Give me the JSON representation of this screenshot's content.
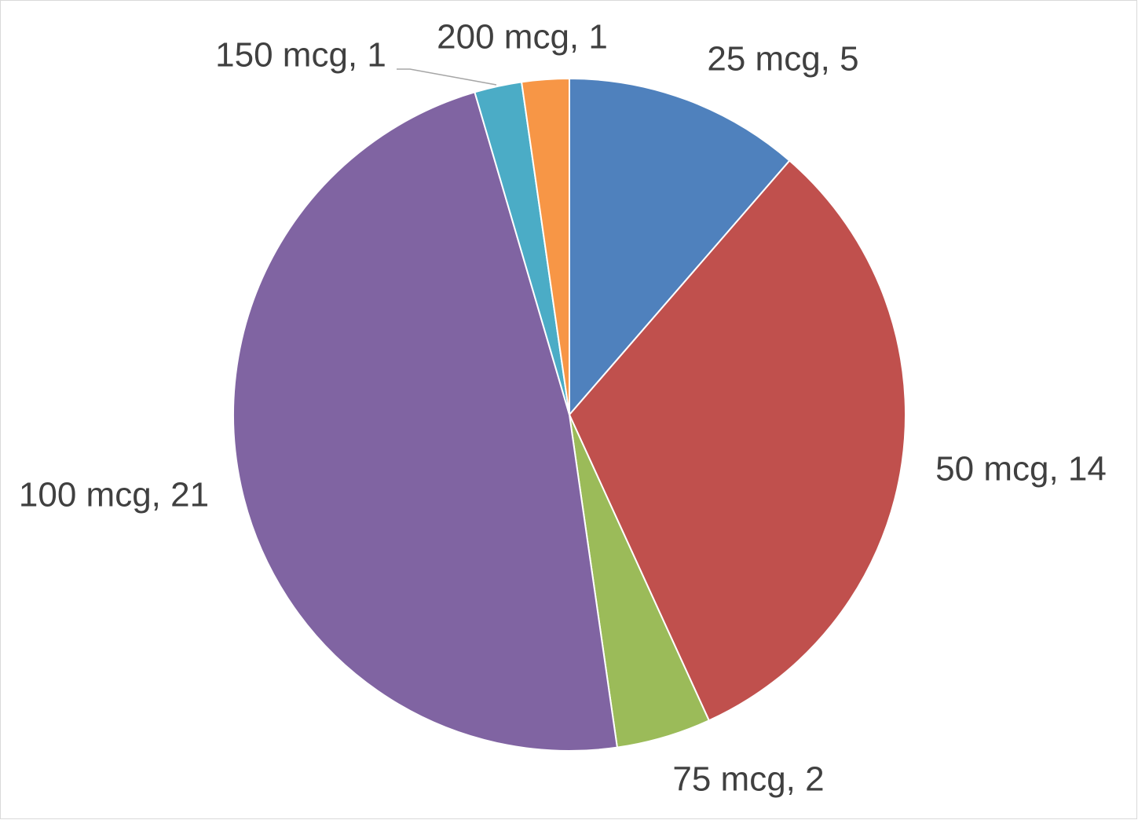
{
  "chart_data": {
    "type": "pie",
    "categories": [
      "25 mcg",
      "50 mcg",
      "75 mcg",
      "100 mcg",
      "150 mcg",
      "200 mcg"
    ],
    "values": [
      5,
      14,
      2,
      21,
      1,
      1
    ],
    "value_labels": [
      "25 mcg, 5",
      "50 mcg, 14",
      "75 mcg, 2",
      "100 mcg, 21",
      "150 mcg, 1",
      "200 mcg, 1"
    ],
    "colors": [
      "#4f81bd",
      "#c0504d",
      "#9bbb59",
      "#8064a2",
      "#4bacc6",
      "#f79646"
    ]
  }
}
